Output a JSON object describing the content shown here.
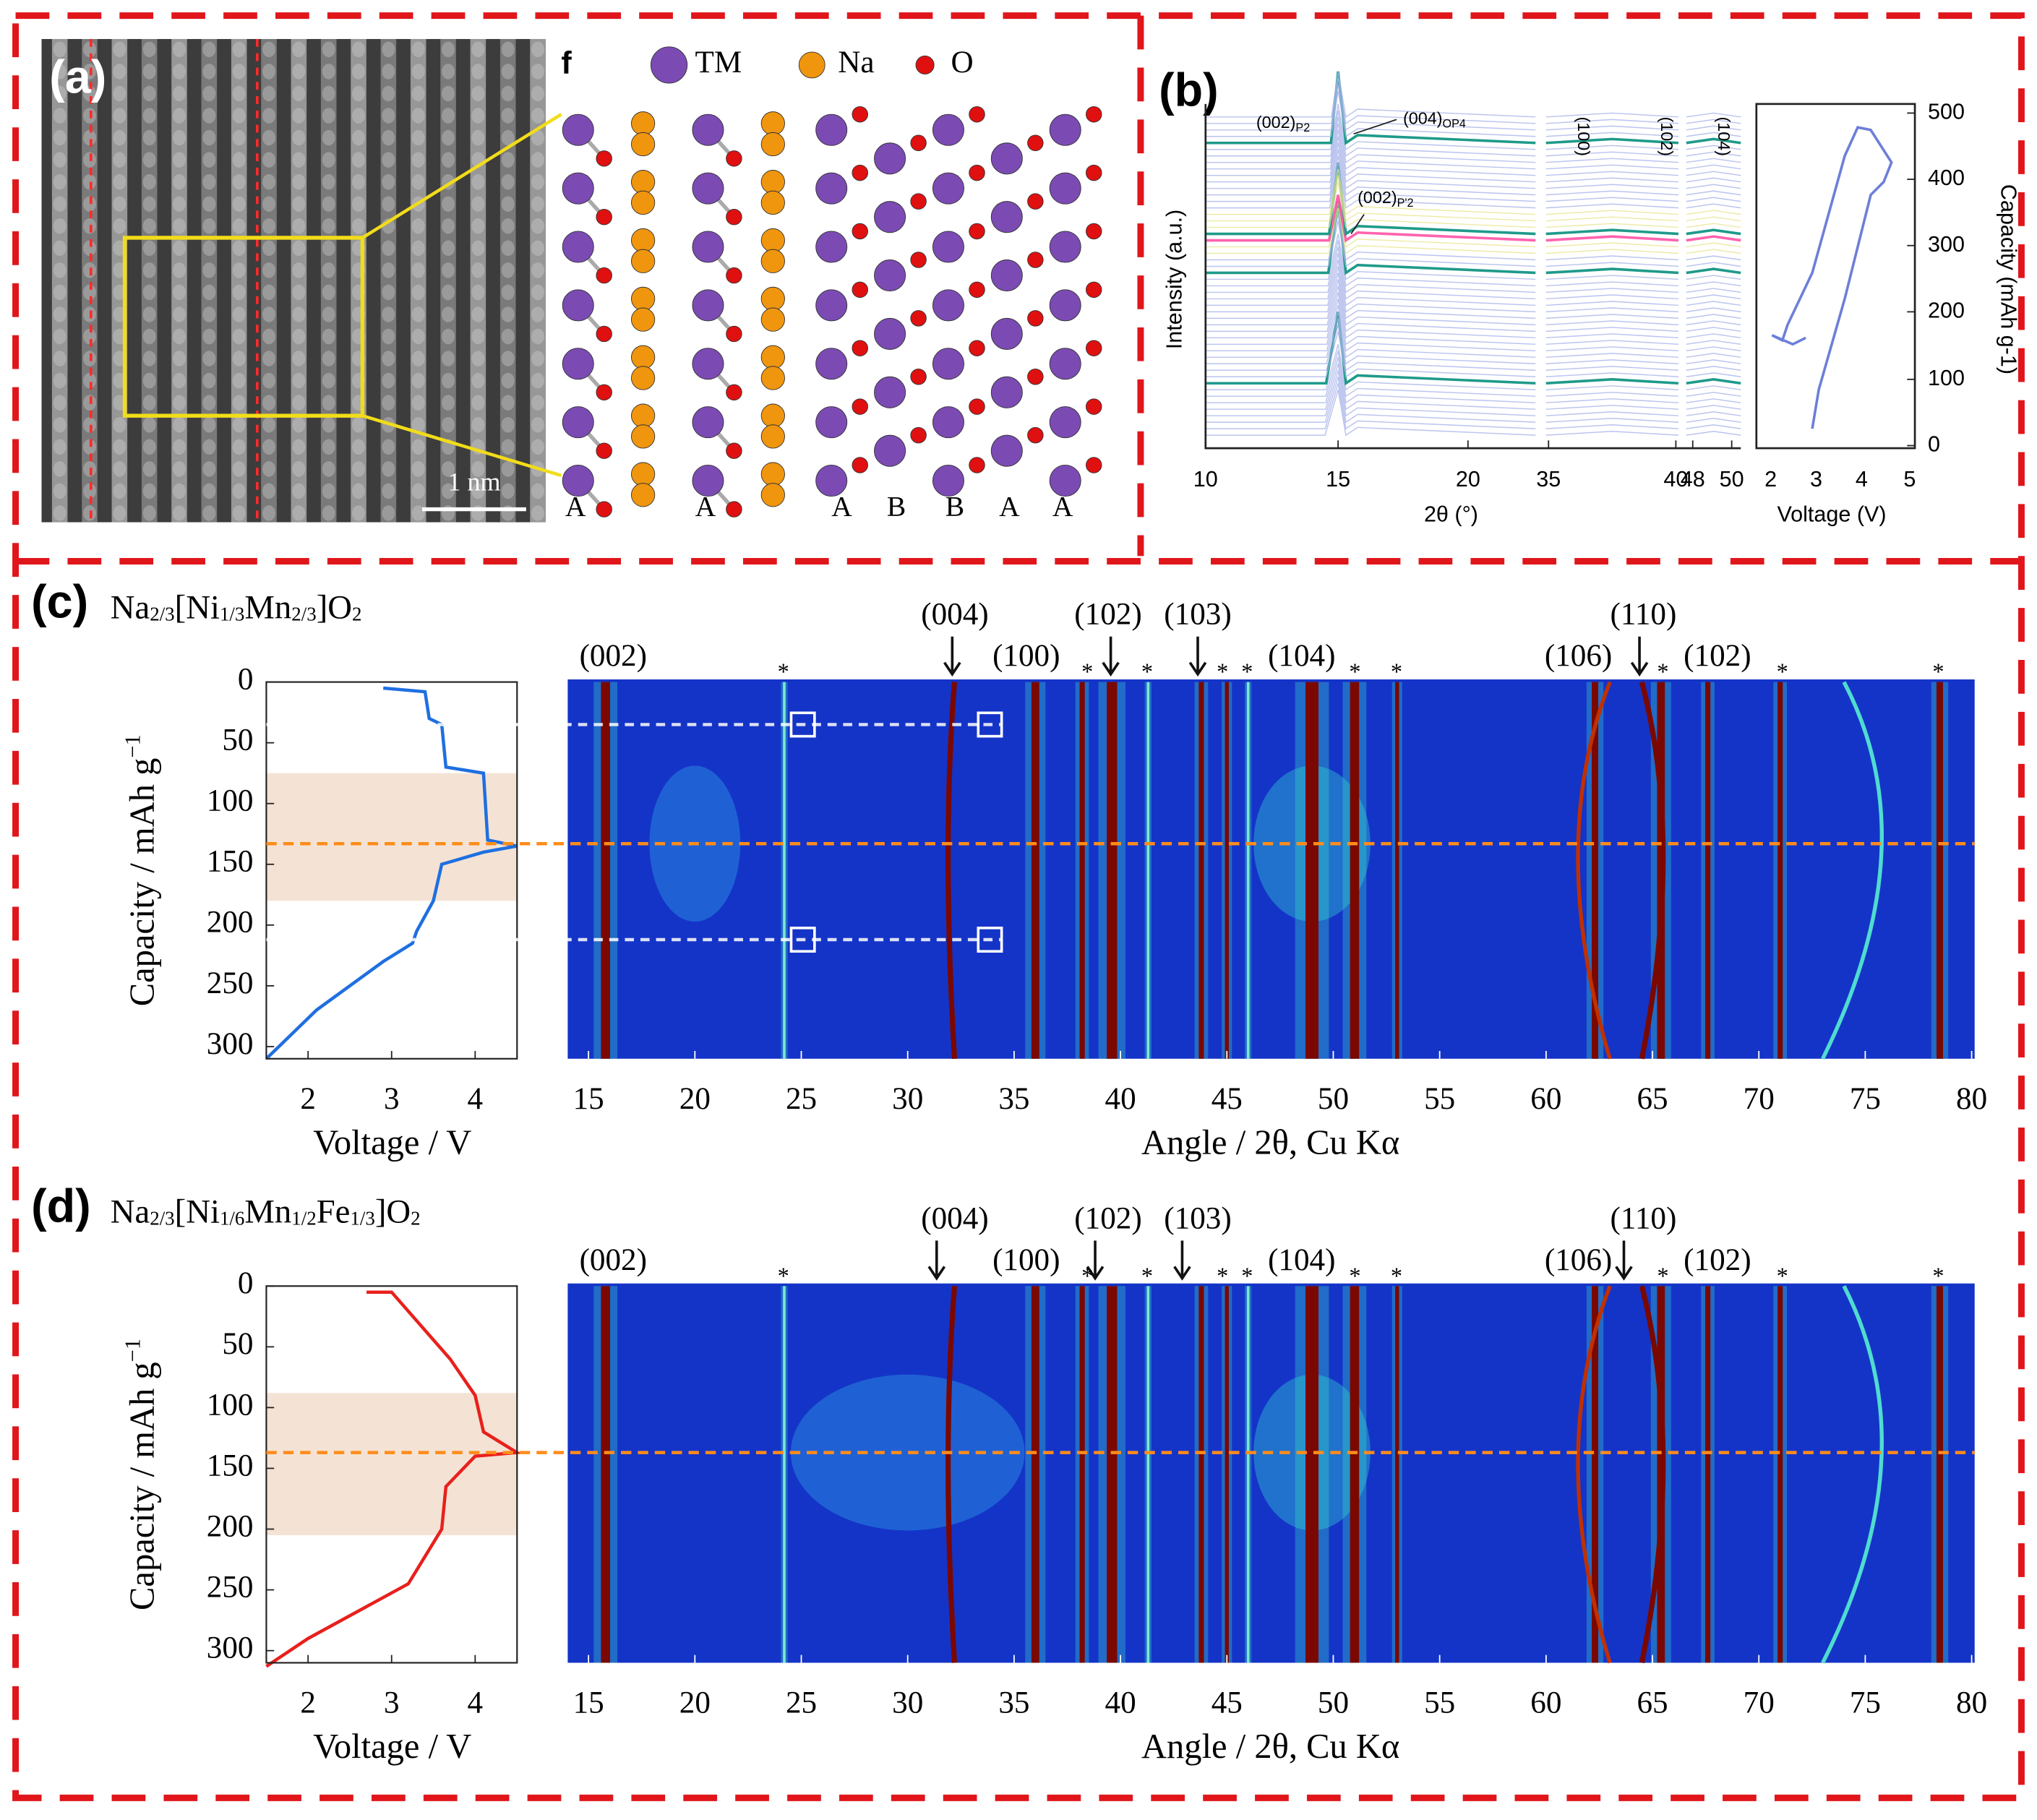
{
  "panel_a": {
    "label": "(a)",
    "scale_bar": "1 nm",
    "inset_label": "f",
    "legend": [
      "TM",
      "Na",
      "O"
    ],
    "stacking": [
      "A",
      "A",
      "A",
      "B",
      "B",
      "A",
      "A"
    ]
  },
  "panel_b": {
    "label": "(b)",
    "peaks": [
      [
        "(002)",
        "P2"
      ],
      [
        "(004)",
        "OP4"
      ],
      [
        "(002)",
        "P'2"
      ]
    ],
    "hkl": [
      "(100)",
      "(102)",
      "(104)"
    ],
    "y_label": "Intensity (a.u.)",
    "x_label": "2θ (°)",
    "x_ticks": [
      10,
      15,
      20,
      35,
      40,
      48,
      50
    ],
    "inset_x_label": "Voltage (V)",
    "inset_x_ticks": [
      2,
      3,
      4,
      5
    ],
    "y2_label": "Capacity (mAh g-1)",
    "y2_ticks": [
      0,
      100,
      200,
      300,
      400,
      500
    ]
  },
  "panel_c": {
    "label": "(c)",
    "formula": [
      "Na",
      "2/3",
      "[Ni",
      "1/3",
      "Mn",
      "2/3",
      "]O",
      "2"
    ],
    "peaks_low": [
      "(002)",
      "(100)",
      "(104)",
      "(106)",
      "(102)"
    ],
    "peaks_high": [
      "(004)",
      "(102)",
      "(103)",
      "(110)"
    ],
    "asterisk": "*",
    "y_label": [
      "Capacity / mAh g",
      "−1"
    ],
    "y_ticks": [
      0,
      50,
      100,
      150,
      200,
      250,
      300
    ],
    "v_ticks": [
      2,
      3,
      4
    ],
    "v_label": "Voltage / V",
    "angle_ticks": [
      15,
      20,
      25,
      30,
      35,
      40,
      45,
      50,
      55,
      60,
      65,
      70,
      75,
      80
    ],
    "angle_label": "Angle / 2θ, Cu Kα"
  },
  "panel_d": {
    "label": "(d)",
    "formula": [
      "Na",
      "2/3",
      "[Ni",
      "1/6",
      "Mn",
      "1/2",
      "Fe",
      "1/3",
      "]O",
      "2"
    ],
    "peaks_low": [
      "(002)",
      "(100)",
      "(104)",
      "(106)",
      "(102)"
    ],
    "peaks_high": [
      "(004)",
      "(102)",
      "(103)",
      "(110)"
    ],
    "asterisk": "*",
    "y_label": [
      "Capacity / mAh g",
      "−1"
    ],
    "y_ticks": [
      0,
      50,
      100,
      150,
      200,
      250,
      300
    ],
    "v_ticks": [
      2,
      3,
      4
    ],
    "v_label": "Voltage / V",
    "angle_ticks": [
      15,
      20,
      25,
      30,
      35,
      40,
      45,
      50,
      55,
      60,
      65,
      70,
      75,
      80
    ],
    "angle_label": "Angle / 2θ, Cu Kα"
  }
}
